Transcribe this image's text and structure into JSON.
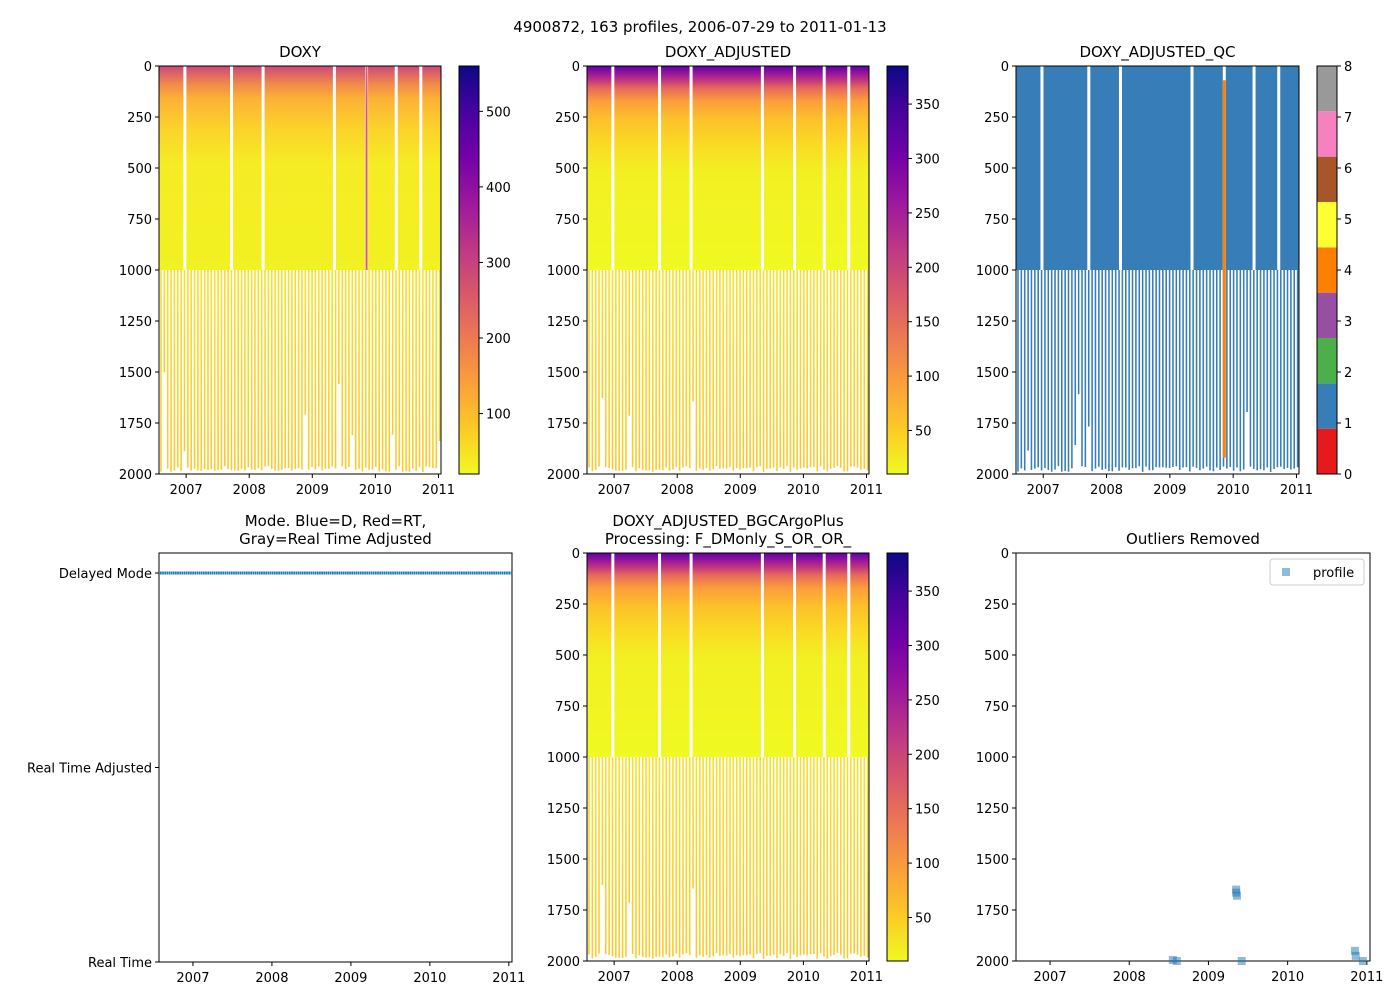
{
  "suptitle": "4900872, 163 profiles, 2006-07-29 to 2011-01-13",
  "colors": {
    "plasma": [
      "#0d0887",
      "#47039f",
      "#7301a8",
      "#9c179e",
      "#bd3786",
      "#d8576b",
      "#ed7953",
      "#fb9f3a",
      "#fdca26",
      "#f0f921"
    ],
    "qc": [
      "#e41a1c",
      "#377eb8",
      "#4daf4a",
      "#984ea3",
      "#ff7f00",
      "#ffff33",
      "#a65628",
      "#f781bf",
      "#999999"
    ],
    "mode_blue": "#1f77b4",
    "outlier": "#1f77b4"
  },
  "chart_data": [
    {
      "id": "doxy",
      "type": "heatmap",
      "title": "DOXY",
      "x_ticks": [
        "2007",
        "2008",
        "2009",
        "2010",
        "2011"
      ],
      "y_ticks": [
        "0",
        "250",
        "500",
        "750",
        "1000",
        "1250",
        "1500",
        "1750",
        "2000"
      ],
      "ylim": [
        2000,
        0
      ],
      "colorbar": {
        "cmap": "plasma",
        "reversed": true,
        "range": [
          20,
          560
        ],
        "ticks": [
          "100",
          "200",
          "300",
          "400",
          "500"
        ],
        "tick_values": [
          100,
          200,
          300,
          400,
          500
        ]
      }
    },
    {
      "id": "doxy_adj",
      "type": "heatmap",
      "title": "DOXY_ADJUSTED",
      "x_ticks": [
        "2007",
        "2008",
        "2009",
        "2010",
        "2011"
      ],
      "y_ticks": [
        "0",
        "250",
        "500",
        "750",
        "1000",
        "1250",
        "1500",
        "1750",
        "2000"
      ],
      "ylim": [
        2000,
        0
      ],
      "colorbar": {
        "cmap": "plasma",
        "reversed": true,
        "range": [
          10,
          385
        ],
        "ticks": [
          "50",
          "100",
          "150",
          "200",
          "250",
          "300",
          "350"
        ],
        "tick_values": [
          50,
          100,
          150,
          200,
          250,
          300,
          350
        ]
      }
    },
    {
      "id": "doxy_qc",
      "type": "heatmap",
      "title": "DOXY_ADJUSTED_QC",
      "x_ticks": [
        "2007",
        "2008",
        "2009",
        "2010",
        "2011"
      ],
      "y_ticks": [
        "0",
        "250",
        "500",
        "750",
        "1000",
        "1250",
        "1500",
        "1750",
        "2000"
      ],
      "ylim": [
        2000,
        0
      ],
      "colorbar": {
        "cmap": "qc",
        "range": [
          0,
          8
        ],
        "ticks": [
          "0",
          "1",
          "2",
          "3",
          "4",
          "5",
          "6",
          "7",
          "8"
        ],
        "tick_values": [
          0,
          1,
          2,
          3,
          4,
          5,
          6,
          7,
          8
        ]
      }
    },
    {
      "id": "mode",
      "type": "scatter",
      "title_lines": [
        "Mode. Blue=D, Red=RT,",
        "Gray=Real Time Adjusted"
      ],
      "x_ticks": [
        "2007",
        "2008",
        "2009",
        "2010",
        "2011"
      ],
      "y_categories": [
        "Delayed Mode",
        "Real Time Adjusted",
        "Real Time"
      ],
      "series": [
        {
          "name": "Delayed Mode",
          "x_range": [
            2006.57,
            2011.04
          ]
        }
      ]
    },
    {
      "id": "doxy_bgc",
      "type": "heatmap",
      "title_lines": [
        "DOXY_ADJUSTED_BGCArgoPlus",
        "Processing: F_DMonly_S_OR_OR_"
      ],
      "x_ticks": [
        "2007",
        "2008",
        "2009",
        "2010",
        "2011"
      ],
      "y_ticks": [
        "0",
        "250",
        "500",
        "750",
        "1000",
        "1250",
        "1500",
        "1750",
        "2000"
      ],
      "ylim": [
        2000,
        0
      ],
      "colorbar": {
        "cmap": "plasma",
        "reversed": true,
        "range": [
          10,
          385
        ],
        "ticks": [
          "50",
          "100",
          "150",
          "200",
          "250",
          "300",
          "350"
        ],
        "tick_values": [
          50,
          100,
          150,
          200,
          250,
          300,
          350
        ]
      }
    },
    {
      "id": "outliers",
      "type": "scatter",
      "title": "Outliers Removed",
      "x_ticks": [
        "2007",
        "2008",
        "2009",
        "2010",
        "2011"
      ],
      "y_ticks": [
        "0",
        "250",
        "500",
        "750",
        "1000",
        "1250",
        "1500",
        "1750",
        "2000"
      ],
      "ylim": [
        2000,
        0
      ],
      "legend": "profile",
      "points": [
        [
          2008.55,
          1995
        ],
        [
          2008.6,
          2000
        ],
        [
          2009.35,
          1650
        ],
        [
          2009.35,
          1665
        ],
        [
          2009.36,
          1680
        ],
        [
          2009.42,
          2000
        ],
        [
          2010.85,
          1950
        ],
        [
          2010.86,
          1975
        ],
        [
          2010.95,
          2000
        ]
      ]
    }
  ]
}
